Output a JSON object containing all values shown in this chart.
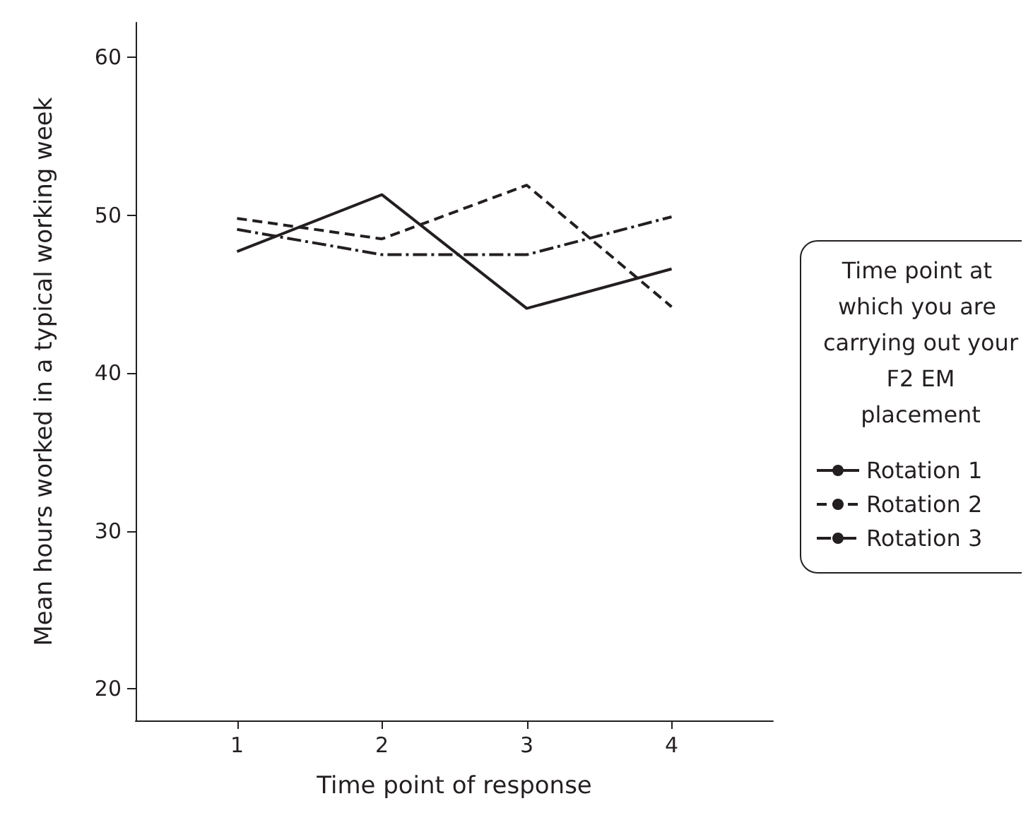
{
  "chart_data": {
    "type": "line",
    "xlabel": "Time point of response",
    "ylabel": "Mean hours worked in a typical working week",
    "legend_title": "Time point at which you are carrying out your F2 EM placement",
    "x": [
      1,
      2,
      3,
      4
    ],
    "xlim": [
      0.3,
      4.7
    ],
    "xticks": [
      1,
      2,
      3,
      4
    ],
    "ylim": [
      18,
      62.2
    ],
    "yticks": [
      20,
      30,
      40,
      50,
      60
    ],
    "grid": false,
    "legend": "right",
    "marker": "none",
    "series": [
      {
        "name": "Rotation 1",
        "color": "#231f20",
        "line_style": "solid",
        "values": [
          47.7,
          51.3,
          44.1,
          46.6
        ]
      },
      {
        "name": "Rotation 2",
        "color": "#231f20",
        "line_style": "dashed",
        "values": [
          49.8,
          48.5,
          51.9,
          44.2
        ]
      },
      {
        "name": "Rotation 3",
        "color": "#231f20",
        "line_style": "dashdot",
        "values": [
          49.1,
          47.5,
          47.5,
          49.9
        ]
      }
    ]
  }
}
